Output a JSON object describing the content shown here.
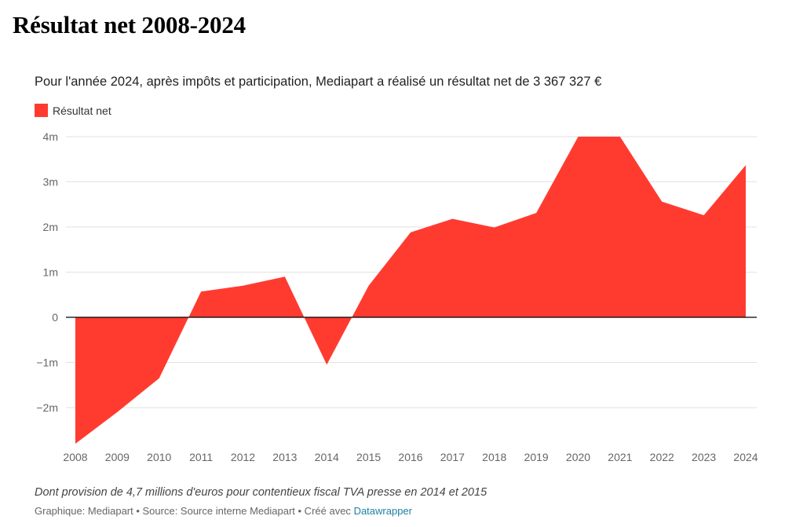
{
  "chart_data": {
    "type": "area",
    "title": "Résultat net 2008-2024",
    "subtitle": "Pour l'année 2024, après impôts et participation, Mediapart a réalisé un résultat net de 3 367 327 €",
    "legend": [
      {
        "name": "Résultat net",
        "color": "#ff3b30"
      }
    ],
    "legend_position": "top-left",
    "x": [
      "2008",
      "2009",
      "2010",
      "2011",
      "2012",
      "2013",
      "2014",
      "2015",
      "2016",
      "2017",
      "2018",
      "2019",
      "2020",
      "2021",
      "2022",
      "2023",
      "2024"
    ],
    "series": [
      {
        "name": "Résultat net",
        "color": "#ff3b30",
        "values": [
          -2.8,
          -2.1,
          -1.35,
          0.57,
          0.7,
          0.9,
          -1.05,
          0.7,
          1.88,
          2.18,
          1.99,
          2.31,
          4.0,
          4.0,
          2.56,
          2.26,
          3.37
        ]
      }
    ],
    "ylim": [
      -2.8,
      4.1
    ],
    "yticks": [
      4,
      3,
      2,
      1,
      0,
      -1,
      -2
    ],
    "ytick_labels": [
      "4m",
      "3m",
      "2m",
      "1m",
      "0",
      "−1m",
      "−2m"
    ],
    "grid": true,
    "note": "Dont provision de 4,7 millions d'euros pour contentieux fiscal TVA presse en 2014 et 2015"
  },
  "credits": {
    "text": "Graphique: Mediapart • Source: Source interne Mediapart • Créé avec",
    "link_label": "Datawrapper",
    "link_color": "#1d81a2"
  },
  "colors": {
    "area": "#ff3b30",
    "grid": "#e2e2e2",
    "zero_line": "#000000",
    "tick_text": "#666666"
  }
}
